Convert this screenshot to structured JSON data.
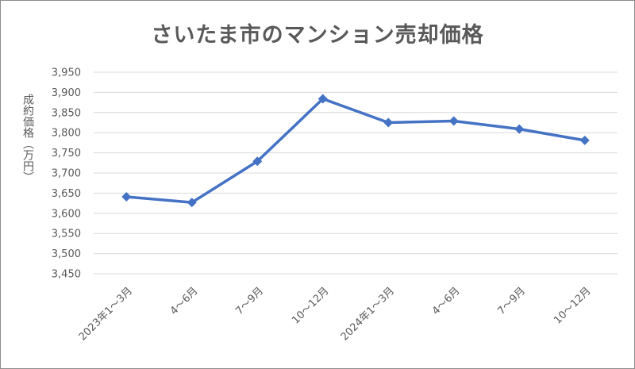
{
  "chart_data": {
    "type": "line",
    "title": "さいたま市のマンション売却価格",
    "ylabel": "成約価格（万円）",
    "xlabel": "",
    "categories": [
      "2023年1～3月",
      "4～6月",
      "7～9月",
      "10～12月",
      "2024年1～3月",
      "4～6月",
      "7～9月",
      "10～12月"
    ],
    "series": [
      {
        "values": [
          3641,
          3627,
          3729,
          3884,
          3825,
          3829,
          3809,
          3781
        ]
      }
    ],
    "ylim": [
      3450,
      3950
    ],
    "yticks": [
      3450,
      3500,
      3550,
      3600,
      3650,
      3700,
      3750,
      3800,
      3850,
      3900,
      3950
    ],
    "ytick_labels": [
      "3,450",
      "3,500",
      "3,550",
      "3,600",
      "3,650",
      "3,700",
      "3,750",
      "3,800",
      "3,850",
      "3,900",
      "3,950"
    ],
    "grid": true,
    "legend": "none",
    "colors": {
      "line": "#4472c4",
      "grid": "#d9d9d9",
      "text": "#595959"
    }
  }
}
